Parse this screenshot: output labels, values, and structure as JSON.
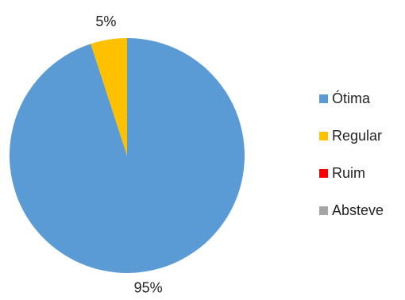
{
  "chart_data": {
    "type": "pie",
    "title": "",
    "slices": [
      {
        "label": "Ótima",
        "value": 95,
        "display": "95%",
        "color": "#5B9BD5"
      },
      {
        "label": "Regular",
        "value": 5,
        "display": "5%",
        "color": "#FFC000"
      },
      {
        "label": "Ruim",
        "value": 0,
        "display": "",
        "color": "#FF0000"
      },
      {
        "label": "Absteve",
        "value": 0,
        "display": "",
        "color": "#A5A5A5"
      }
    ],
    "legend_position": "right"
  }
}
